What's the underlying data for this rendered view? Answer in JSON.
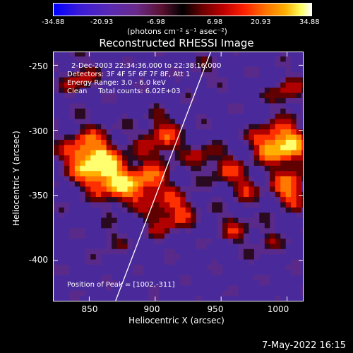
{
  "colorbar": {
    "ticks": [
      "-34.88",
      "-20.93",
      "-6.98",
      "6.98",
      "20.93",
      "34.88"
    ],
    "units": "(photons cm⁻² s⁻¹ asec⁻²)"
  },
  "chart_data": {
    "type": "heatmap",
    "title": "Reconstructed RHESSI Image",
    "xlabel": "Heliocentric X (arcsec)",
    "ylabel": "Heliocentric Y (arcsec)",
    "xlim": [
      823,
      1012
    ],
    "ylim": [
      -431,
      -240
    ],
    "x_ticks": [
      "850",
      "900",
      "950",
      "1000"
    ],
    "y_ticks": [
      "-250",
      "-300",
      "-350",
      "-400"
    ],
    "value_range": [
      -34.88,
      34.88
    ],
    "limb_line": [
      [
        870,
        -431
      ],
      [
        942,
        -240
      ]
    ],
    "peak": [
      1002,
      -311
    ],
    "annotations": {
      "time_range": "2-Dec-2003 22:34:36.000 to 22:38:16.000",
      "detectors": "Detectors: 3F 4F 5F 6F 7F 8F, Att 1",
      "energy": "Energy Range: 3.0 - 6.0 keV",
      "method": "Clean     Total counts: 6.02E+03",
      "peak_text": "Position of Peak = [1002,-311]"
    }
  },
  "footer": {
    "date": "7-May-2022 16:15"
  }
}
